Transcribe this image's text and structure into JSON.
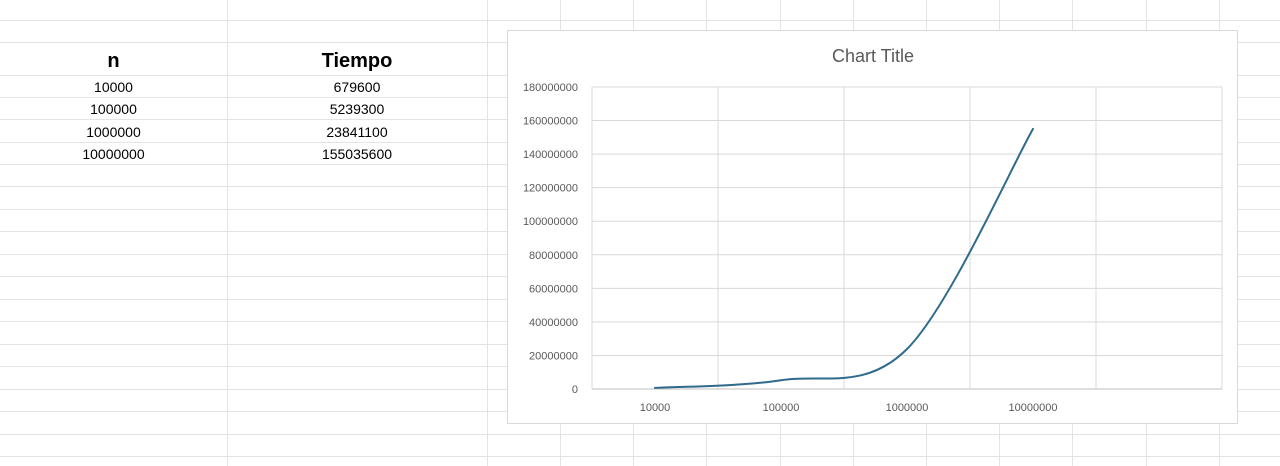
{
  "sheet": {
    "headers": {
      "n": "n",
      "tiempo": "Tiempo"
    },
    "rows": [
      {
        "n": "10000",
        "tiempo": "679600"
      },
      {
        "n": "100000",
        "tiempo": "5239300"
      },
      {
        "n": "1000000",
        "tiempo": "23841100"
      },
      {
        "n": "10000000",
        "tiempo": "155035600"
      }
    ]
  },
  "chart_data": {
    "type": "line",
    "title": "Chart Title",
    "xlabel": "",
    "ylabel": "",
    "categories": [
      "10000",
      "100000",
      "1000000",
      "10000000"
    ],
    "series": [
      {
        "values": [
          679600,
          5239300,
          23841100,
          155035600
        ],
        "color": "#2e6b8c"
      }
    ],
    "ylim": [
      0,
      180000000
    ],
    "yticks": [
      "0",
      "20000000",
      "40000000",
      "60000000",
      "80000000",
      "100000000",
      "120000000",
      "140000000",
      "160000000",
      "180000000"
    ],
    "grid": true,
    "smooth": true
  }
}
